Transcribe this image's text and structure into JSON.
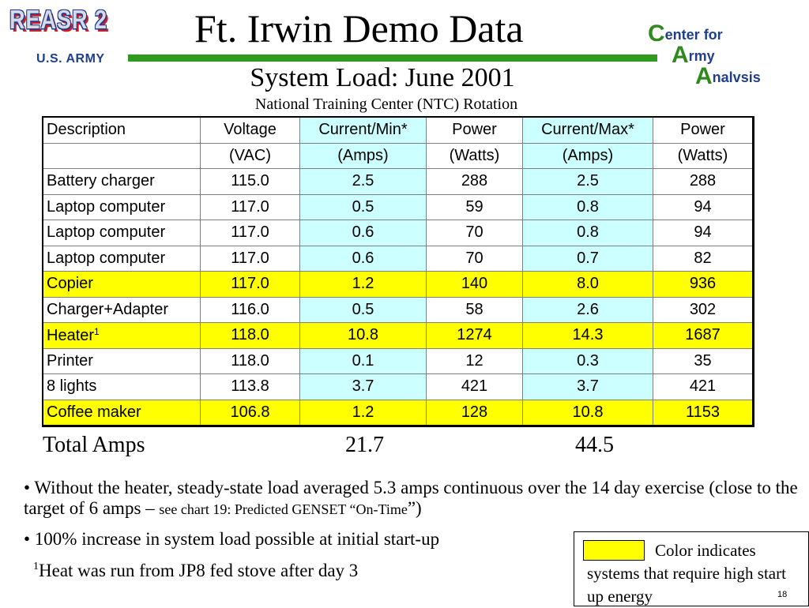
{
  "header": {
    "logo_left_text": "REASR 2",
    "army_label": "U.S. ARMY",
    "title": "Ft. Irwin Demo Data",
    "caa_logo": [
      {
        "initial": "C",
        "rest": "enter for"
      },
      {
        "initial": "A",
        "rest": "rmy"
      },
      {
        "initial": "A",
        "rest": "nalvsis"
      }
    ]
  },
  "subtitle": "System Load:  June 2001",
  "sub_subtitle": "National Training Center (NTC) Rotation",
  "table": {
    "headers_row1": [
      "Description",
      "Voltage",
      "Current/Min*",
      "Power",
      "Current/Max*",
      "Power"
    ],
    "headers_row2": [
      "",
      "(VAC)",
      "(Amps)",
      "(Watts)",
      "(Amps)",
      "(Watts)"
    ],
    "rows": [
      {
        "cells": [
          "Battery charger",
          "115.0",
          "2.5",
          "288",
          "2.5",
          "288"
        ],
        "highlight": false
      },
      {
        "cells": [
          "Laptop computer",
          "117.0",
          "0.5",
          "59",
          "0.8",
          "94"
        ],
        "highlight": false
      },
      {
        "cells": [
          "Laptop computer",
          "117.0",
          "0.6",
          "70",
          "0.8",
          "94"
        ],
        "highlight": false
      },
      {
        "cells": [
          "Laptop computer",
          "117.0",
          "0.6",
          "70",
          "0.7",
          "82"
        ],
        "highlight": false
      },
      {
        "cells": [
          "Copier",
          "117.0",
          "1.2",
          "140",
          "8.0",
          "936"
        ],
        "highlight": true
      },
      {
        "cells": [
          "Charger+Adapter",
          "116.0",
          "0.5",
          "58",
          "2.6",
          "302"
        ],
        "highlight": false
      },
      {
        "cells": [
          "Heater",
          "118.0",
          "10.8",
          "1274",
          "14.3",
          "1687"
        ],
        "highlight": true,
        "sup": "1"
      },
      {
        "cells": [
          "Printer",
          "118.0",
          "0.1",
          "12",
          "0.3",
          "35"
        ],
        "highlight": false
      },
      {
        "cells": [
          "8 lights",
          "113.8",
          "3.7",
          "421",
          "3.7",
          "421"
        ],
        "highlight": false
      },
      {
        "cells": [
          "Coffee maker",
          "106.8",
          "1.2",
          "128",
          "10.8",
          "1153"
        ],
        "highlight": true
      }
    ],
    "highlight_color": "#ffff00",
    "current_column_color": "#ccffff"
  },
  "totals": {
    "label": "Total Amps",
    "current_min": "21.7",
    "current_max": "44.5"
  },
  "bullets": {
    "b1_main": "•  Without the heater, steady-state load averaged 5.3 amps continuous over the 14 day exercise (close to the target of 6 amps –",
    "b1_small": "see chart 19: Predicted GENSET “On-Time",
    "b1_end": "”)",
    "b2": "•  100% increase in system load possible at initial start-up"
  },
  "footnote": {
    "marker": "1",
    "text": "Heat was run from JP8 fed stove after day 3"
  },
  "legend": {
    "text": "Color indicates systems that require high start up energy",
    "swatch_color": "#ffff00"
  },
  "page_number": "18"
}
